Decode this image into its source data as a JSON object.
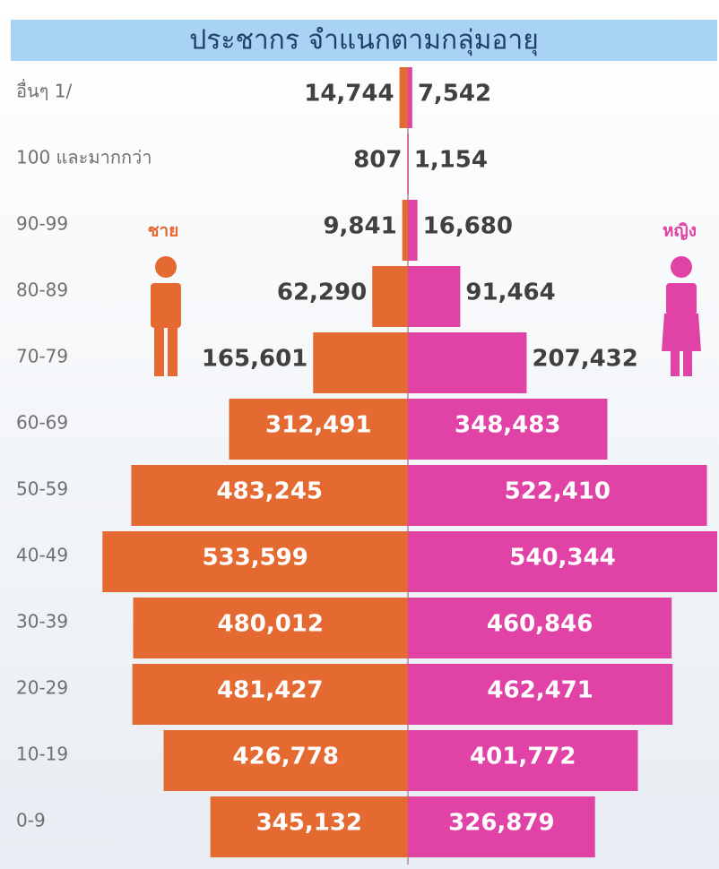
{
  "chart_data": {
    "type": "pyramid",
    "title": "ประชากร จำแนกตามกลุ่มอายุ",
    "categories": [
      "อื่นๆ 1/",
      "100 และมากกว่า",
      "90-99",
      "80-89",
      "70-79",
      "60-69",
      "50-59",
      "40-49",
      "30-39",
      "20-29",
      "10-19",
      "0-9"
    ],
    "series": [
      {
        "name": "ชาย",
        "color": "#e46a32",
        "values": [
          14744,
          807,
          9841,
          62290,
          165601,
          312491,
          483245,
          533599,
          480012,
          481427,
          426778,
          345132
        ],
        "value_labels": [
          "14,744",
          "807",
          "9,841",
          "62,290",
          "165,601",
          "312,491",
          "483,245",
          "533,599",
          "480,012",
          "481,427",
          "426,778",
          "345,132"
        ]
      },
      {
        "name": "หญิง",
        "color": "#e043a5",
        "values": [
          7542,
          1154,
          16680,
          91464,
          207432,
          348483,
          522410,
          540344,
          460846,
          462471,
          401772,
          326879
        ],
        "value_labels": [
          "7,542",
          "1,154",
          "16,680",
          "91,464",
          "207,432",
          "348,483",
          "522,410",
          "540,344",
          "460,846",
          "462,471",
          "401,772",
          "326,879"
        ]
      }
    ]
  }
}
